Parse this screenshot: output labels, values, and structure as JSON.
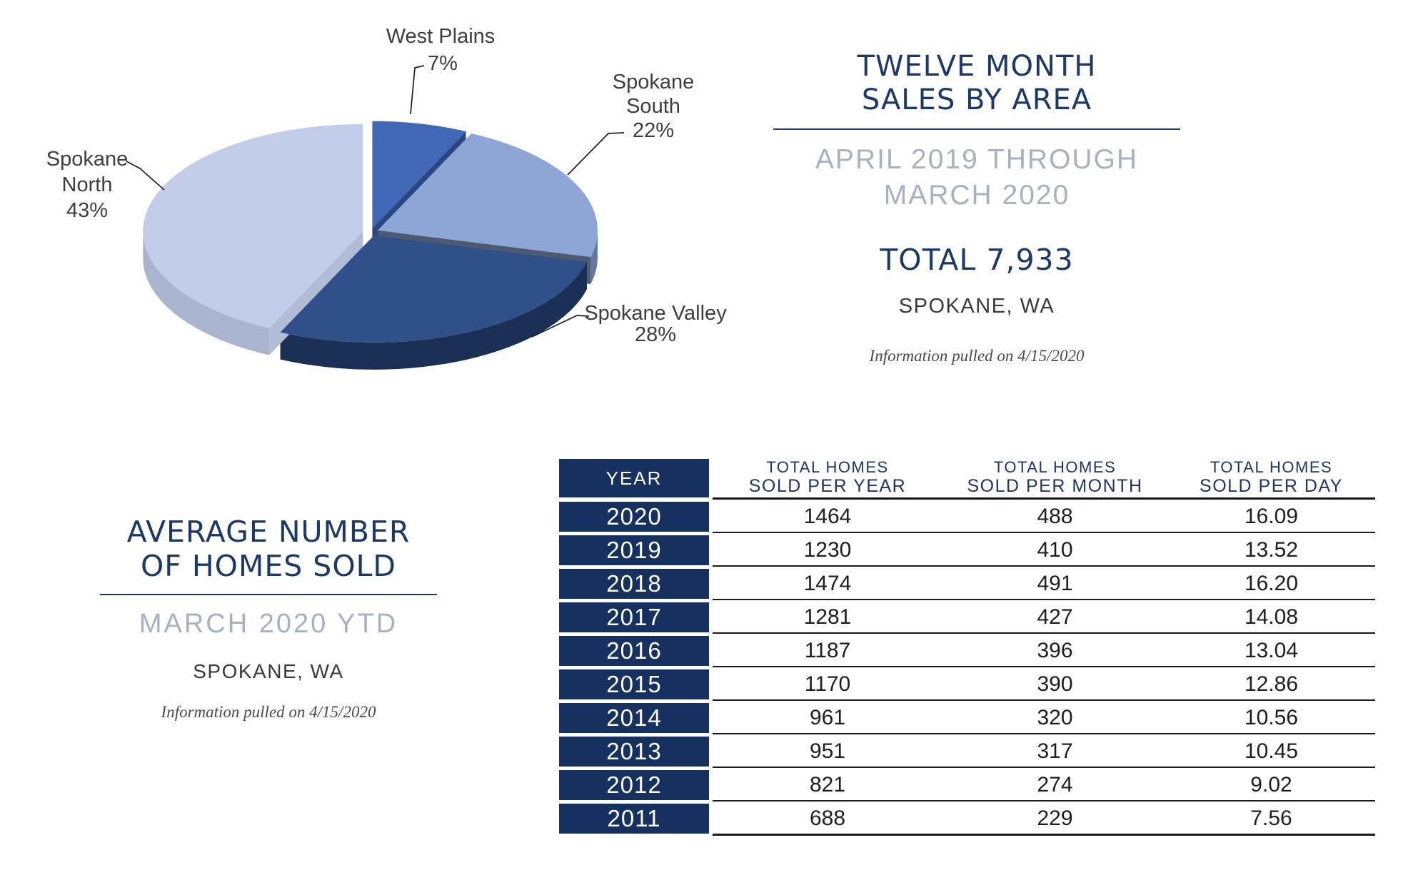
{
  "sales_by_area": {
    "title_line1": "TWELVE MONTH",
    "title_line2": "SALES BY AREA",
    "period_line1": "APRIL 2019 THROUGH",
    "period_line2": "MARCH 2020",
    "total_label": "TOTAL 7,933",
    "location": "SPOKANE, WA",
    "note": "Information pulled on 4/15/2020"
  },
  "average_homes": {
    "title_line1": "AVERAGE NUMBER",
    "title_line2": "OF HOMES SOLD",
    "period": "MARCH 2020 YTD",
    "location": "SPOKANE, WA",
    "note": "Information pulled on 4/15/2020"
  },
  "colors": {
    "navy_text": "#1c3769",
    "table_navy": "#16315f",
    "period_gray_blue": "#a6b1c2",
    "dark_text": "#3a3a3a",
    "rule_dark": "#141414"
  },
  "chart_data": {
    "type": "pie",
    "style": "3d-exploded",
    "title": "Twelve Month Sales by Area, April 2019 through March 2020, Spokane WA",
    "total_sales": 7933,
    "categories": [
      "West Plains",
      "Spokane South",
      "Spokane Valley",
      "Spokane North"
    ],
    "values": [
      7,
      22,
      28,
      43
    ],
    "unit": "percent",
    "start_angle_deg": 0,
    "direction": "clockwise",
    "legend": "none (callout labels)",
    "slices": [
      {
        "name": "West Plains",
        "pct": 7,
        "label_line1": "West Plains",
        "label_line2": "7%",
        "color": "#4168b6",
        "wall_color": "#2f4d88",
        "cut_color": "#2a4781"
      },
      {
        "name": "Spokane South",
        "pct": 22,
        "label_line1": "Spokane",
        "label_line2": "South",
        "label_line3": "22%",
        "color": "#8da6d6",
        "wall_color": "#64779f",
        "cut_color": "#4d5a72"
      },
      {
        "name": "Spokane Valley",
        "pct": 28,
        "label_line1": "Spokane Valley",
        "label_line2": "28%",
        "color": "#30508a",
        "wall_color": "#1b2e53",
        "cut_color": "#20365f"
      },
      {
        "name": "Spokane North",
        "pct": 43,
        "label_line1": "Spokane",
        "label_line2": "North",
        "label_line3": "43%",
        "color": "#c2cee9",
        "wall_color": "#a8b4d0",
        "cut_color": "#b2bcd6"
      }
    ]
  },
  "table": {
    "header_year": "YEAR",
    "columns": [
      {
        "line1": "TOTAL HOMES",
        "line2": "SOLD PER YEAR"
      },
      {
        "line1": "TOTAL HOMES",
        "line2": "SOLD PER MONTH"
      },
      {
        "line1": "TOTAL HOMES",
        "line2": "SOLD PER DAY"
      }
    ],
    "rows": [
      {
        "year": "2020",
        "per_year": "1464",
        "per_month": "488",
        "per_day": "16.09"
      },
      {
        "year": "2019",
        "per_year": "1230",
        "per_month": "410",
        "per_day": "13.52"
      },
      {
        "year": "2018",
        "per_year": "1474",
        "per_month": "491",
        "per_day": "16.20"
      },
      {
        "year": "2017",
        "per_year": "1281",
        "per_month": "427",
        "per_day": "14.08"
      },
      {
        "year": "2016",
        "per_year": "1187",
        "per_month": "396",
        "per_day": "13.04"
      },
      {
        "year": "2015",
        "per_year": "1170",
        "per_month": "390",
        "per_day": "12.86"
      },
      {
        "year": "2014",
        "per_year": "961",
        "per_month": "320",
        "per_day": "10.56"
      },
      {
        "year": "2013",
        "per_year": "951",
        "per_month": "317",
        "per_day": "10.45"
      },
      {
        "year": "2012",
        "per_year": "821",
        "per_month": "274",
        "per_day": "9.02"
      },
      {
        "year": "2011",
        "per_year": "688",
        "per_month": "229",
        "per_day": "7.56"
      }
    ]
  }
}
